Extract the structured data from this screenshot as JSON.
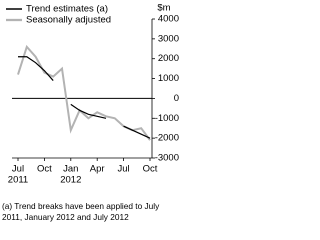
{
  "chart_data": {
    "type": "line",
    "y_label": "$m",
    "categories": [
      "Jul",
      null,
      null,
      "Oct",
      null,
      null,
      "Jan",
      null,
      null,
      "Apr",
      null,
      null,
      "Jul",
      null,
      null,
      "Oct"
    ],
    "years": [
      "2011",
      null,
      null,
      null,
      null,
      null,
      "2012",
      null,
      null,
      null,
      null,
      null,
      null,
      null,
      null,
      null
    ],
    "series": [
      {
        "name": "Trend estimates (a)",
        "color": "#000000",
        "width": 1.2,
        "values": [
          2100,
          2100,
          1800,
          1400,
          900,
          null,
          -300,
          -600,
          -800,
          -900,
          -1000,
          null,
          -1400,
          -1600,
          -1800,
          -2000
        ]
      },
      {
        "name": "Seasonally adjusted",
        "color": "#b3b3b3",
        "width": 2,
        "values": [
          1200,
          2600,
          2100,
          1300,
          1100,
          1500,
          -1600,
          -600,
          -1000,
          -700,
          -900,
          -1000,
          -1400,
          -1600,
          -1500,
          -2100
        ]
      }
    ],
    "ylim": [
      -3000,
      4000
    ],
    "yticks": [
      4000,
      3000,
      2000,
      1000,
      0,
      -1000,
      -2000,
      -3000
    ],
    "zero_line": true,
    "legend": "top-left",
    "footnote": "(a) Trend breaks have been applied to July 2011, January 2012 and July 2012"
  }
}
